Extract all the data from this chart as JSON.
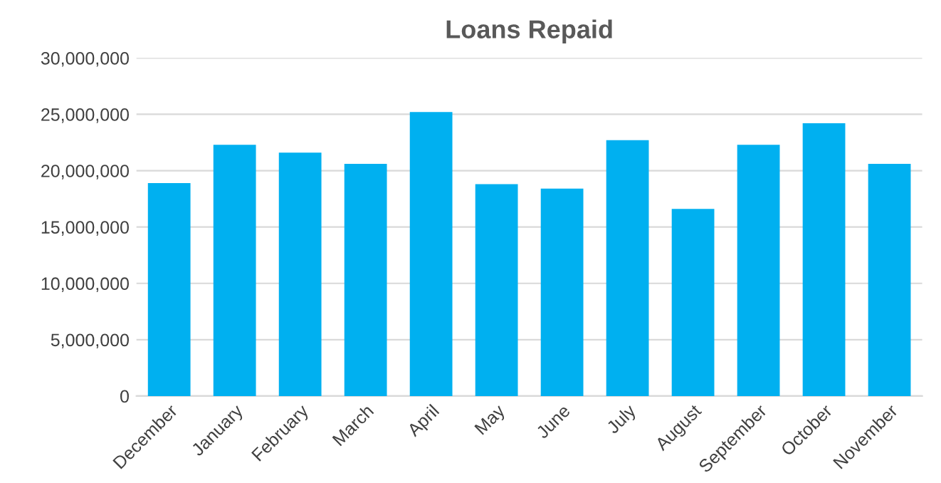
{
  "chart_data": {
    "type": "bar",
    "title": "Loans Repaid",
    "categories": [
      "December",
      "January",
      "February",
      "March",
      "April",
      "May",
      "June",
      "July",
      "August",
      "September",
      "October",
      "November"
    ],
    "values": [
      18900000,
      22300000,
      21600000,
      20600000,
      25200000,
      18800000,
      18400000,
      22700000,
      16600000,
      22300000,
      24200000,
      20600000
    ],
    "color": "#00b0f0",
    "ylim": [
      0,
      30000000
    ],
    "yticks": [
      {
        "value": 0,
        "label": "0"
      },
      {
        "value": 5000000,
        "label": "5,000,000"
      },
      {
        "value": 10000000,
        "label": "10,000,000"
      },
      {
        "value": 15000000,
        "label": "15,000,000"
      },
      {
        "value": 20000000,
        "label": "20,000,000"
      },
      {
        "value": 25000000,
        "label": "25,000,000"
      },
      {
        "value": 30000000,
        "label": "30,000,000"
      }
    ],
    "grid": "y"
  }
}
